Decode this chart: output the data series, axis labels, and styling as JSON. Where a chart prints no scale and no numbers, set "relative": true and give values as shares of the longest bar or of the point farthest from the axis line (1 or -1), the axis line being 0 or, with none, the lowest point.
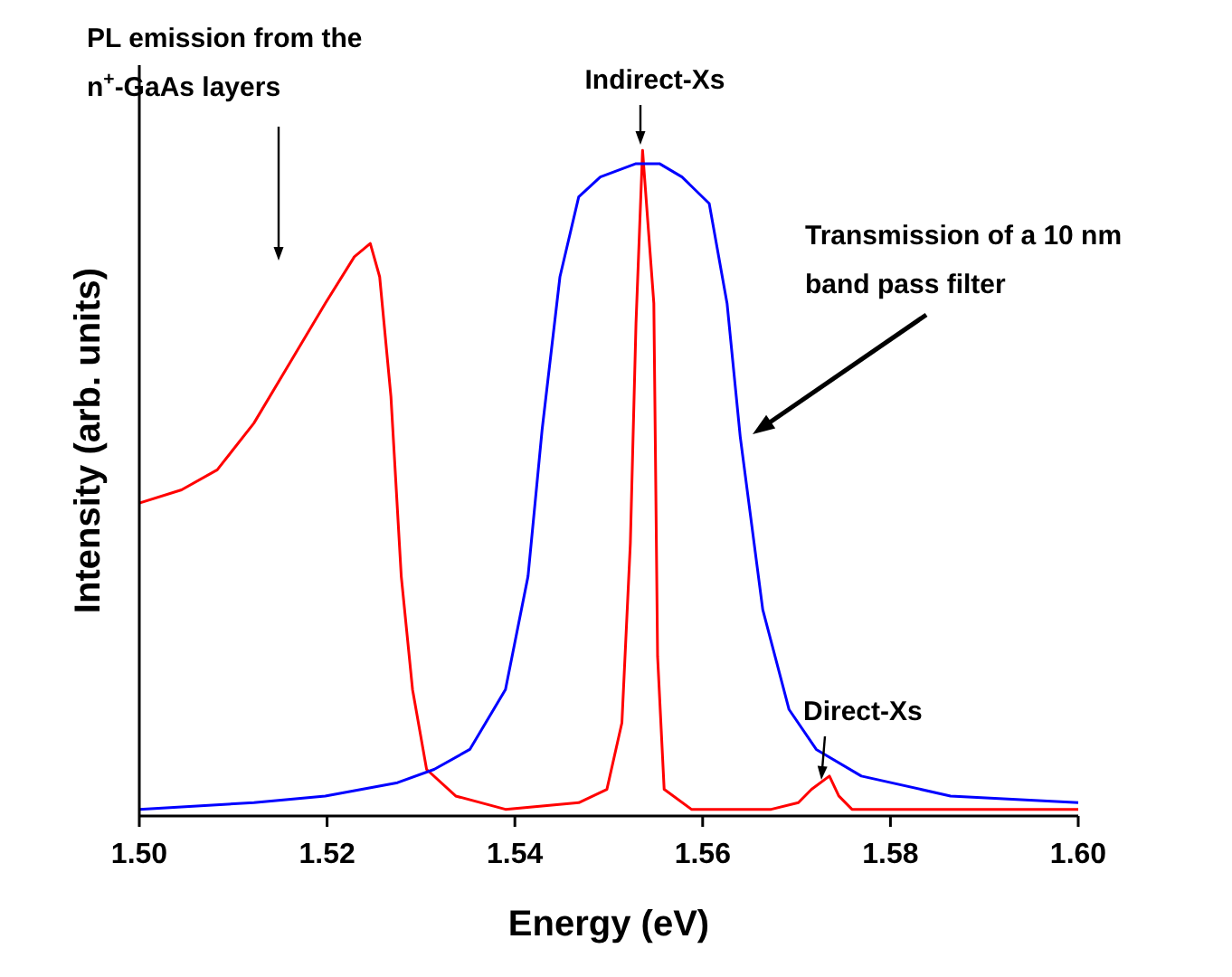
{
  "chart_data": {
    "type": "line",
    "relative": true,
    "xlabel": "Energy (eV)",
    "ylabel": "Intensity (arb. units)",
    "xlim": [
      1.5,
      1.6
    ],
    "xticks": [
      {
        "value": 1.5,
        "label": "1.50"
      },
      {
        "value": 1.52,
        "label": "1.52"
      },
      {
        "value": 1.54,
        "label": "1.54"
      },
      {
        "value": 1.56,
        "label": "1.56"
      },
      {
        "value": 1.58,
        "label": "1.58"
      },
      {
        "value": 1.6,
        "label": "1.60"
      }
    ],
    "grid": false,
    "marker": "none",
    "line_style": "solid",
    "series": [
      {
        "color": "#ff0000",
        "x": [
          1.5,
          1.5045,
          1.5083,
          1.5122,
          1.516,
          1.5198,
          1.5229,
          1.5246,
          1.5256,
          1.5268,
          1.5279,
          1.5291,
          1.5306,
          1.5337,
          1.539,
          1.5468,
          1.5498,
          1.5514,
          1.5523,
          1.5529,
          1.5536,
          1.5548,
          1.5552,
          1.5559,
          1.5588,
          1.5673,
          1.5702,
          1.5716,
          1.5735,
          1.5745,
          1.5759,
          1.6
        ],
        "values": [
          0.47,
          0.49,
          0.52,
          0.59,
          0.68,
          0.77,
          0.84,
          0.86,
          0.81,
          0.63,
          0.36,
          0.19,
          0.07,
          0.03,
          0.01,
          0.02,
          0.04,
          0.14,
          0.41,
          0.74,
          1,
          0.77,
          0.24,
          0.04,
          0.01,
          0.01,
          0.02,
          0.04,
          0.06,
          0.03,
          0.01,
          0.01
        ]
      },
      {
        "color": "#0000ff",
        "x": [
          1.5,
          1.5122,
          1.5198,
          1.5275,
          1.5314,
          1.5352,
          1.539,
          1.5414,
          1.5429,
          1.5448,
          1.5468,
          1.5491,
          1.5529,
          1.5554,
          1.5578,
          1.5607,
          1.5626,
          1.564,
          1.5664,
          1.5692,
          1.5721,
          1.5769,
          1.5864,
          1.6
        ],
        "values": [
          0.01,
          0.02,
          0.03,
          0.05,
          0.07,
          0.1,
          0.19,
          0.36,
          0.58,
          0.81,
          0.93,
          0.96,
          0.98,
          0.98,
          0.96,
          0.92,
          0.77,
          0.57,
          0.31,
          0.16,
          0.1,
          0.06,
          0.03,
          0.02
        ]
      }
    ],
    "annotations": [
      "PL emission from the n$^{+}$-GaAs layers",
      "Indirect-Xs",
      "Transmission of a 10 nm band pass filter",
      "Direct-Xs"
    ]
  }
}
